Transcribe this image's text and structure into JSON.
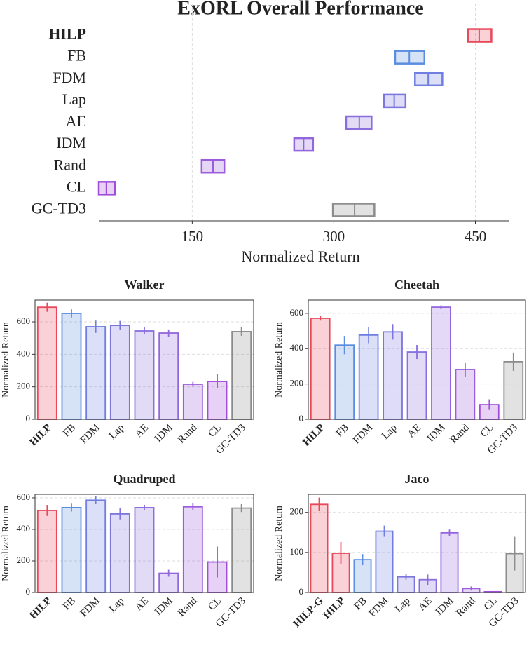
{
  "chart_data": [
    {
      "type": "interval",
      "title": "ExORL Overall Performance",
      "xlabel": "Normalized Return",
      "categories": [
        "HILP",
        "FB",
        "FDM",
        "Lap",
        "AE",
        "IDM",
        "Rand",
        "CL",
        "GC-TD3"
      ],
      "values": [
        454,
        380,
        400,
        364,
        327,
        268,
        172,
        59,
        322
      ],
      "lower": [
        442,
        365,
        386,
        353,
        313,
        258,
        160,
        51,
        299
      ],
      "upper": [
        467,
        396,
        415,
        376,
        340,
        278,
        184,
        68,
        343
      ],
      "colors": [
        "#e8485a",
        "#5b8ee0",
        "#6f7ee0",
        "#7c75dd",
        "#8a6edd",
        "#9466dd",
        "#9a5ddd",
        "#a04ddb",
        "#8c8c8c"
      ],
      "xlim": [
        51,
        486
      ],
      "xticks": [
        150,
        300,
        450
      ],
      "grid": true,
      "emphasis": [
        0
      ]
    },
    {
      "type": "bar",
      "title": "Walker",
      "ylabel": "Normalized Return",
      "categories": [
        "HILP",
        "FB",
        "FDM",
        "Lap",
        "AE",
        "IDM",
        "Rand",
        "CL",
        "GC-TD3"
      ],
      "values": [
        690,
        652,
        570,
        578,
        544,
        531,
        216,
        233,
        540
      ],
      "errors": [
        28,
        25,
        38,
        28,
        22,
        22,
        14,
        43,
        26
      ],
      "colors": [
        "#e8485a",
        "#5b8ee0",
        "#6f7ee0",
        "#7c75dd",
        "#8a6edd",
        "#9466dd",
        "#9a5ddd",
        "#a04ddb",
        "#8c8c8c"
      ],
      "ylim": [
        0,
        734
      ],
      "yticks": [
        0,
        200,
        400,
        600
      ],
      "grid": true,
      "emphasis": [
        0
      ]
    },
    {
      "type": "bar",
      "title": "Cheetah",
      "ylabel": "Normalized Return",
      "categories": [
        "HILP",
        "FB",
        "FDM",
        "Lap",
        "AE",
        "IDM",
        "Rand",
        "CL",
        "GC-TD3"
      ],
      "values": [
        572,
        420,
        477,
        495,
        381,
        635,
        282,
        83,
        326
      ],
      "errors": [
        13,
        52,
        46,
        44,
        40,
        10,
        40,
        30,
        52
      ],
      "colors": [
        "#e8485a",
        "#5b8ee0",
        "#6f7ee0",
        "#7c75dd",
        "#8a6edd",
        "#9466dd",
        "#9a5ddd",
        "#a04ddb",
        "#8c8c8c"
      ],
      "ylim": [
        0,
        675
      ],
      "yticks": [
        0,
        200,
        400,
        600
      ],
      "grid": true,
      "emphasis": [
        0
      ]
    },
    {
      "type": "bar",
      "title": "Quadruped",
      "ylabel": "Normalized Return",
      "categories": [
        "HILP",
        "FB",
        "FDM",
        "Lap",
        "AE",
        "IDM",
        "Rand",
        "CL",
        "GC-TD3"
      ],
      "values": [
        520,
        538,
        585,
        498,
        538,
        122,
        543,
        193,
        535
      ],
      "errors": [
        35,
        25,
        25,
        35,
        18,
        22,
        22,
        98,
        25
      ],
      "colors": [
        "#e8485a",
        "#5b8ee0",
        "#6f7ee0",
        "#7c75dd",
        "#8a6edd",
        "#9466dd",
        "#9a5ddd",
        "#a04ddb",
        "#8c8c8c"
      ],
      "ylim": [
        0,
        622
      ],
      "yticks": [
        0,
        200,
        400,
        600
      ],
      "grid": true,
      "emphasis": [
        0
      ]
    },
    {
      "type": "bar",
      "title": "Jaco",
      "ylabel": "Normalized Return",
      "categories": [
        "HILP-G",
        "HILP",
        "FB",
        "FDM",
        "Lap",
        "AE",
        "IDM",
        "Rand",
        "CL",
        "GC-TD3"
      ],
      "values": [
        220,
        98,
        82,
        153,
        39,
        32,
        149,
        10,
        2,
        97
      ],
      "errors": [
        17,
        28,
        14,
        14,
        7,
        13,
        8,
        5,
        1,
        42
      ],
      "colors": [
        "#e8485a",
        "#e8485a",
        "#5b8ee0",
        "#6f7ee0",
        "#7c75dd",
        "#8a6edd",
        "#9466dd",
        "#9a5ddd",
        "#a04ddb",
        "#8c8c8c"
      ],
      "ylim": [
        0,
        245
      ],
      "yticks": [
        0,
        100,
        200
      ],
      "grid": true,
      "emphasis": [
        0,
        1
      ]
    }
  ]
}
